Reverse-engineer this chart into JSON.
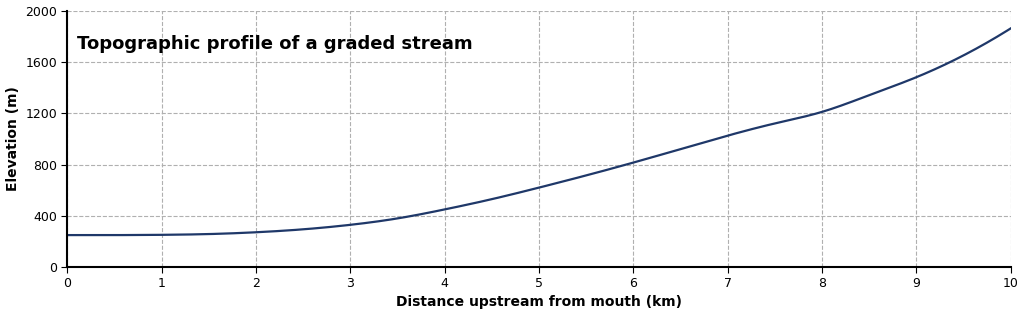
{
  "title": "Topographic profile of a graded stream",
  "xlabel": "Distance upstream from mouth (km)",
  "ylabel": "Elevation (m)",
  "xlim": [
    0,
    10
  ],
  "ylim": [
    0,
    2000
  ],
  "xticks": [
    0,
    1,
    2,
    3,
    4,
    5,
    6,
    7,
    8,
    9,
    10
  ],
  "yticks": [
    0,
    400,
    800,
    1200,
    1600,
    2000
  ],
  "line_color": "#1F3869",
  "line_width": 1.5,
  "background_color": "#ffffff",
  "curve_A": 250,
  "curve_c": 0.52,
  "curve_x0": 1.5
}
